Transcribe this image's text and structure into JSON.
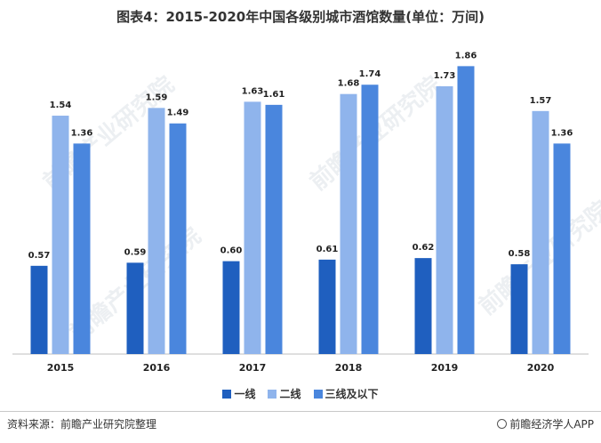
{
  "title": "图表4：2015-2020年中国各级别城市酒馆数量(单位：万间)",
  "source": "资料来源：前瞻产业研究院整理",
  "brand": "前瞻经济学人APP",
  "watermark": "前瞻产业研究院",
  "colors": {
    "一线": "#1f5fbf",
    "二线": "#8fb4ec",
    "三线及以下": "#4a86dd",
    "axis": "#bfbfbf"
  },
  "chart_data": {
    "type": "bar",
    "categories": [
      "2015",
      "2016",
      "2017",
      "2018",
      "2019",
      "2020"
    ],
    "series": [
      {
        "name": "一线",
        "values": [
          0.57,
          0.59,
          0.6,
          0.61,
          0.62,
          0.58
        ]
      },
      {
        "name": "二线",
        "values": [
          1.54,
          1.59,
          1.63,
          1.68,
          1.73,
          1.57
        ]
      },
      {
        "name": "三线及以下",
        "values": [
          1.36,
          1.49,
          1.61,
          1.74,
          1.86,
          1.36
        ]
      }
    ],
    "ylim": [
      0,
      2.0
    ],
    "grid": false,
    "legend_position": "bottom",
    "xlabel": "",
    "ylabel": ""
  }
}
